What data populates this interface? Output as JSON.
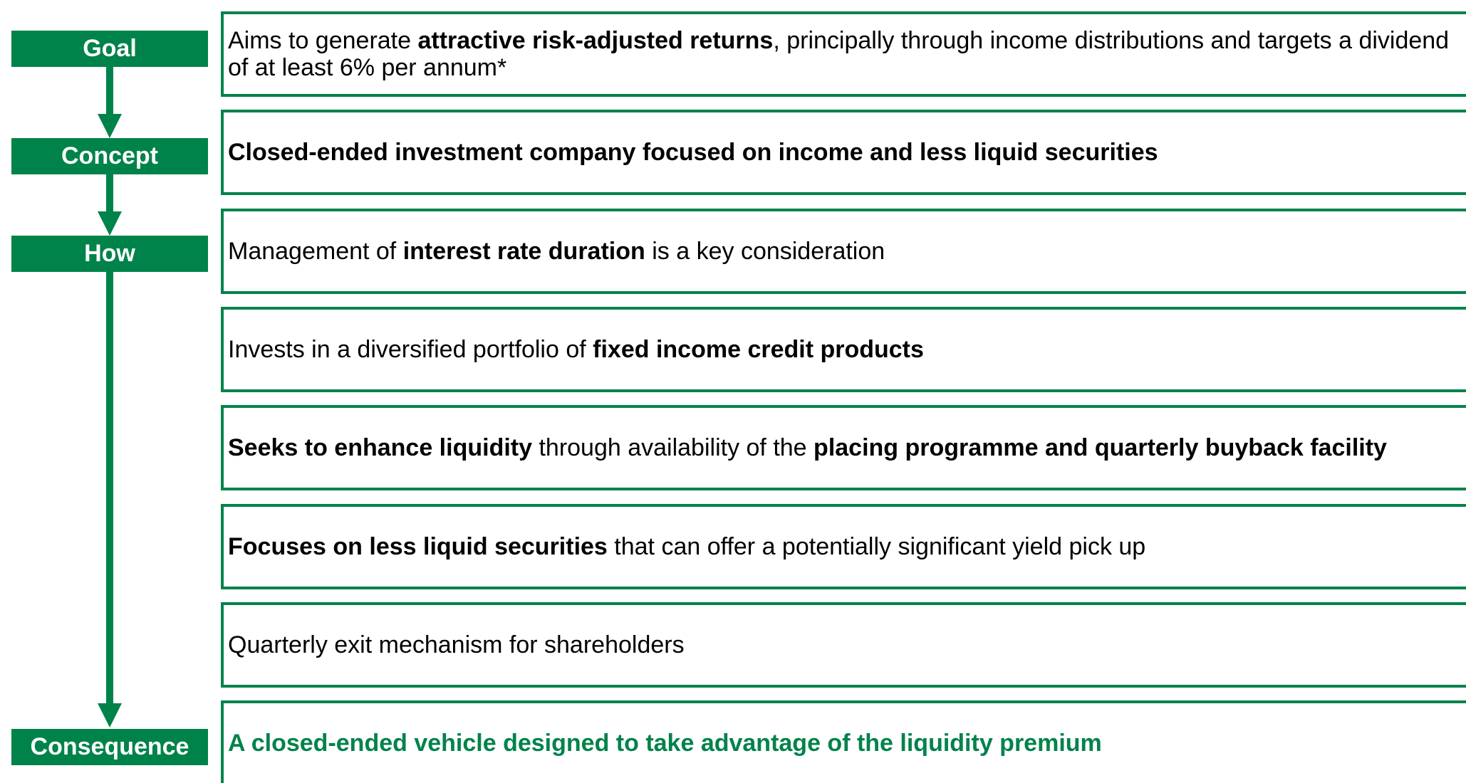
{
  "labels": [
    "Goal",
    "Concept",
    "How",
    "Consequence"
  ],
  "rows": [
    {
      "parts": [
        {
          "text": "Aims to generate ",
          "bold": false
        },
        {
          "text": "attractive risk-adjusted returns",
          "bold": true
        },
        {
          "text": ", principally through income distributions and targets a dividend of at least 6% per annum*",
          "bold": false
        }
      ]
    },
    {
      "parts": [
        {
          "text": "Closed-ended investment company focused on income and less liquid securities",
          "bold": true
        }
      ]
    },
    {
      "parts": [
        {
          "text": "Management of ",
          "bold": false
        },
        {
          "text": "interest rate duration",
          "bold": true
        },
        {
          "text": " is a key consideration",
          "bold": false
        }
      ]
    },
    {
      "parts": [
        {
          "text": "Invests in a diversified portfolio of ",
          "bold": false
        },
        {
          "text": "fixed income credit products",
          "bold": true
        }
      ]
    },
    {
      "parts": [
        {
          "text": "Seeks to enhance liquidity",
          "bold": true
        },
        {
          "text": " through availability of the ",
          "bold": false
        },
        {
          "text": "placing programme and quarterly buyback facility",
          "bold": true
        }
      ]
    },
    {
      "parts": [
        {
          "text": "Focuses on less liquid securities",
          "bold": true
        },
        {
          "text": " that can offer a potentially significant yield pick up",
          "bold": false
        }
      ]
    },
    {
      "parts": [
        {
          "text": "Quarterly exit mechanism for shareholders",
          "bold": false
        }
      ]
    },
    {
      "parts": [
        {
          "text": "A closed-ended vehicle designed to take advantage of the liquidity premium",
          "bold": true
        }
      ]
    }
  ]
}
